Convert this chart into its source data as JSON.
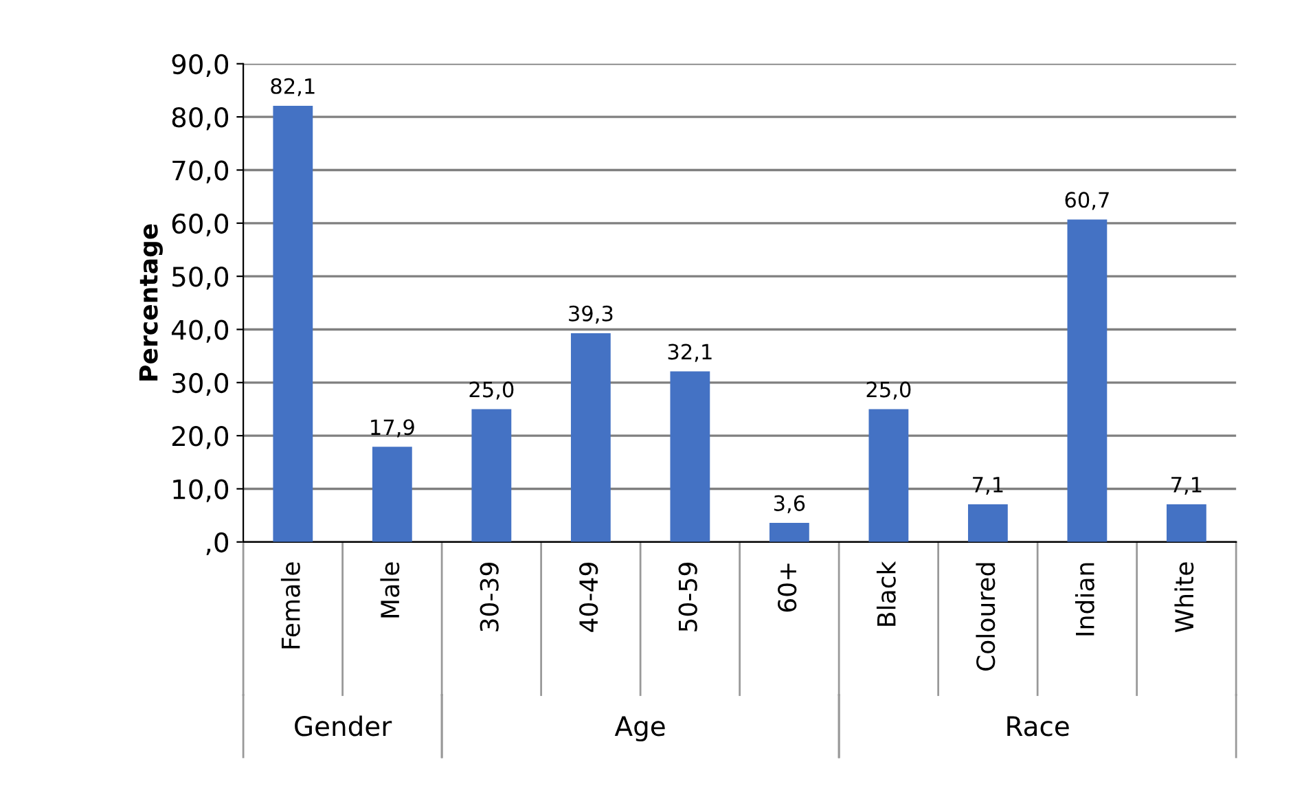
{
  "chart_data": {
    "type": "bar",
    "ylabel": "Percentage",
    "categories": [
      "Female",
      "Male",
      "30-39",
      "40-49",
      "50-59",
      "60+",
      "Black",
      "Coloured",
      "Indian",
      "White"
    ],
    "values": [
      82.1,
      17.9,
      25.0,
      39.3,
      32.1,
      3.6,
      25.0,
      7.1,
      60.7,
      7.1
    ],
    "value_labels": [
      "82,1",
      "17,9",
      "25,0",
      "39,3",
      "32,1",
      "3,6",
      "25,0",
      "7,1",
      "60,7",
      "7,1"
    ],
    "color": "#4472c4",
    "ylim": [
      0,
      90
    ],
    "yticks": [
      {
        "value": 0,
        "label": ",0"
      },
      {
        "value": 10,
        "label": "10,0"
      },
      {
        "value": 20,
        "label": "20,0"
      },
      {
        "value": 30,
        "label": "30,0"
      },
      {
        "value": 40,
        "label": "40,0"
      },
      {
        "value": 50,
        "label": "50,0"
      },
      {
        "value": 60,
        "label": "60,0"
      },
      {
        "value": 70,
        "label": "70,0"
      },
      {
        "value": 80,
        "label": "80,0"
      },
      {
        "value": 90,
        "label": "90,0"
      }
    ],
    "grid": "y",
    "annotations": [
      "Gender",
      "Age",
      "Race"
    ]
  }
}
